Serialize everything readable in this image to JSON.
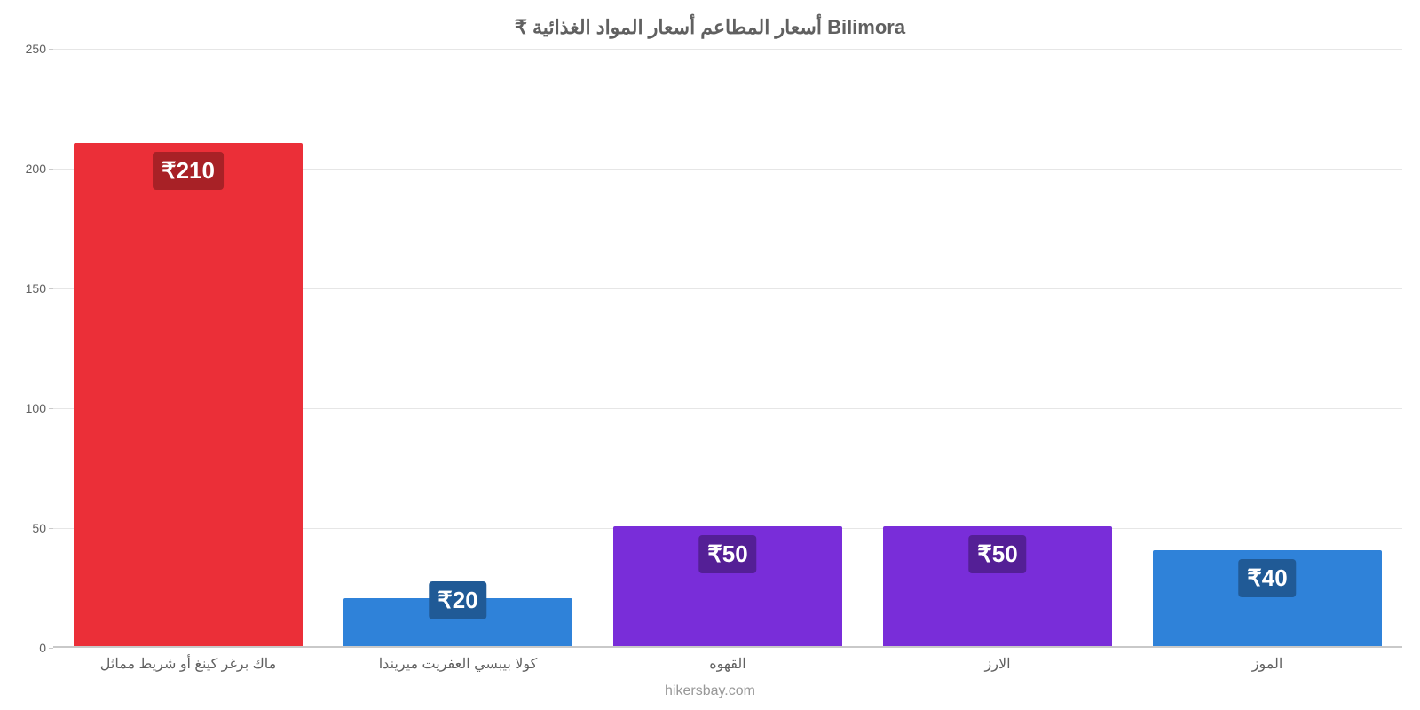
{
  "chart": {
    "type": "bar",
    "title": "₹ أسعار المطاعم أسعار المواد الغذائية Bilimora",
    "title_fontsize": 22,
    "title_color": "#606060",
    "watermark": "hikersbay.com",
    "watermark_color": "#989898",
    "background_color": "#ffffff",
    "grid_color": "#e6e6e6",
    "axis_color": "#c9c9c9",
    "tick_label_color": "#606060",
    "ylim": [
      0,
      250
    ],
    "ytick_step": 50,
    "yticks": [
      0,
      50,
      100,
      150,
      200,
      250
    ],
    "label_fontsize": 14,
    "categories": [
      "ماك برغر كينغ أو شريط مماثل",
      "كولا بيبسي العفريت ميريندا",
      "القهوه",
      "الارز",
      "الموز"
    ],
    "values": [
      210,
      20,
      50,
      50,
      40
    ],
    "value_labels": [
      "₹210",
      "₹20",
      "₹50",
      "₹50",
      "₹40"
    ],
    "bar_colors": [
      "#eb2f38",
      "#2f82d9",
      "#792dd9",
      "#792dd9",
      "#2f82d9"
    ],
    "badge_colors": [
      "#a82126",
      "#205a96",
      "#541f96",
      "#541f96",
      "#205a96"
    ],
    "bar_width_ratio": 0.85,
    "badge_fontsize": 26,
    "badge_text_color": "#ffffff",
    "xtick_fontsize": 16,
    "xtick_color": "#606060"
  }
}
